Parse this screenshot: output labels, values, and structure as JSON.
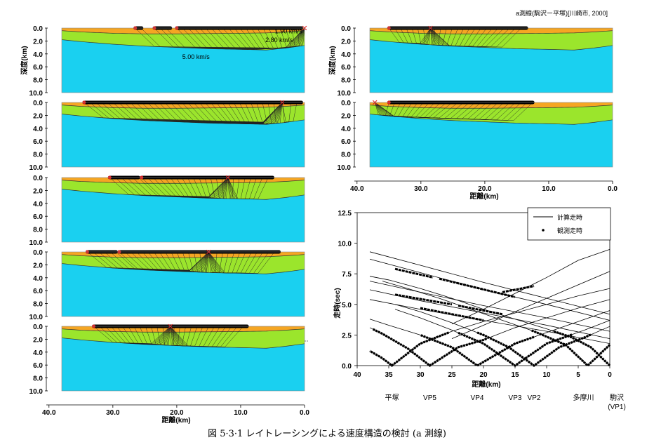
{
  "header": "a測線(駒沢ー平塚)[川崎市, 2000]",
  "caption": "図 5·3·1 レイトレーシングによる速度構造の検討 (a 測線)",
  "colors": {
    "layer1": "#f5a623",
    "layer2": "#9be52c",
    "layer3": "#1ad0f0",
    "sticks": "#000000",
    "source": "#e02020"
  },
  "model": {
    "velocity_labels": [
      "1.90 km/s",
      "2.80 km/s",
      "5.00 km/s"
    ],
    "depth_label": "深度(km)",
    "depth_ticks": [
      "0.0",
      "2.0",
      "4.0",
      "6.0",
      "8.0",
      "10.0"
    ],
    "distance_label": "距離(km)",
    "distance_ticks": [
      "40.0",
      "30.0",
      "20.0",
      "10.0",
      "0.0"
    ],
    "distance_range": [
      40,
      0
    ],
    "depth_range": [
      0,
      10
    ],
    "layer_boundaries": {
      "x": [
        38,
        35,
        30,
        25,
        20,
        15,
        10,
        6,
        3,
        0
      ],
      "base_layer1": [
        0.4,
        0.6,
        0.8,
        0.9,
        0.9,
        0.85,
        0.8,
        0.75,
        0.6,
        0.4
      ],
      "base_layer2": [
        1.8,
        2.1,
        2.5,
        2.8,
        3.0,
        3.2,
        3.3,
        3.4,
        3.1,
        2.7
      ]
    },
    "panels": [
      {
        "source_x": 0,
        "receivers": [
          [
            26.5,
            25.5
          ],
          [
            23.5,
            21
          ],
          [
            20,
            0.5
          ]
        ]
      },
      {
        "source_x": 3.5,
        "receivers": [
          [
            34.5,
            0.5
          ]
        ]
      },
      {
        "source_x": 12,
        "receivers": [
          [
            30.5,
            26
          ],
          [
            25.5,
            5
          ]
        ]
      },
      {
        "source_x": 15,
        "receivers": [
          [
            34,
            29.5
          ],
          [
            29,
            4
          ]
        ]
      },
      {
        "source_x": 21,
        "receivers": [
          [
            33,
            9
          ]
        ]
      },
      {
        "source_x": 28.5,
        "receivers": [
          [
            35,
            13.5
          ]
        ]
      },
      {
        "source_x": 37.2,
        "receivers": [
          [
            35,
            12.5
          ]
        ]
      }
    ]
  },
  "chart_data": {
    "type": "line",
    "xlabel": "距離(km)",
    "ylabel": "走時(sec)",
    "xlim": [
      40,
      0
    ],
    "ylim": [
      0,
      12.5
    ],
    "x_ticks": [
      "40",
      "35",
      "30",
      "25",
      "20",
      "15",
      "10",
      "5",
      "0"
    ],
    "y_ticks": [
      "0.0",
      "2.5",
      "5.0",
      "7.5",
      "10.0",
      "12.5"
    ],
    "legend": {
      "position": "top-right",
      "items": [
        "計算走時",
        "観測走時"
      ]
    },
    "shot_points": [
      {
        "label": "平塚",
        "x": 34.5
      },
      {
        "label": "VP5",
        "x": 28.5
      },
      {
        "label": "VP4",
        "x": 21
      },
      {
        "label": "VP3",
        "x": 15
      },
      {
        "label": "VP2",
        "x": 12
      },
      {
        "label": "多摩川",
        "x": 3.5
      },
      {
        "label": "駒沢",
        "x": 0
      },
      {
        "label": "(VP1)",
        "x": 0
      }
    ],
    "series": [
      {
        "source_x": 0,
        "x": [
          0,
          3,
          6,
          10,
          15,
          20,
          25,
          30,
          35,
          38
        ],
        "y": [
          0,
          1.5,
          2.3,
          3.0,
          3.8,
          4.6,
          5.5,
          6.3,
          7.0,
          7.3
        ]
      },
      {
        "source_x": 3.5,
        "x": [
          0,
          3.5,
          7,
          12,
          17,
          22,
          27,
          32,
          36
        ],
        "y": [
          1.7,
          0,
          1.7,
          2.8,
          3.7,
          4.6,
          5.5,
          6.3,
          6.9
        ]
      },
      {
        "source_x": 12,
        "x": [
          0,
          4,
          8,
          12,
          16,
          20,
          25,
          30,
          34
        ],
        "y": [
          3.2,
          2.3,
          1.5,
          0,
          1.5,
          2.5,
          3.5,
          4.4,
          5.0
        ]
      },
      {
        "source_x": 15,
        "x": [
          0,
          4,
          10,
          15,
          20,
          25,
          30,
          34
        ],
        "y": [
          3.7,
          2.9,
          1.8,
          0,
          1.8,
          2.9,
          3.9,
          4.6
        ]
      },
      {
        "source_x": 21,
        "x": [
          0,
          5,
          10,
          15,
          21,
          25,
          30,
          35,
          38
        ],
        "y": [
          4.5,
          3.6,
          2.7,
          1.8,
          0,
          1.5,
          2.5,
          3.3,
          3.8
        ]
      },
      {
        "source_x": 28.5,
        "x": [
          0,
          5,
          10,
          15,
          20,
          24,
          28.5,
          32,
          36,
          38
        ],
        "y": [
          5.4,
          4.7,
          3.9,
          3.1,
          2.1,
          1.5,
          0,
          1.4,
          2.6,
          3.1
        ]
      },
      {
        "source_x": 34.5,
        "x": [
          0,
          5,
          10,
          15,
          20,
          25,
          30,
          32,
          34.5,
          36,
          38
        ],
        "y": [
          6.3,
          5.7,
          5.0,
          4.3,
          3.6,
          2.8,
          1.8,
          1.0,
          0,
          0.6,
          1.2
        ]
      }
    ],
    "upper_lines": [
      {
        "x": [
          38,
          30,
          20,
          10,
          0
        ],
        "y": [
          9.3,
          8.2,
          6.8,
          5.5,
          4.2
        ]
      },
      {
        "x": [
          38,
          30,
          20,
          10,
          0
        ],
        "y": [
          8.7,
          7.6,
          6.2,
          5.0,
          3.7
        ]
      },
      {
        "x": [
          38,
          30,
          20,
          10,
          0
        ],
        "y": [
          6.9,
          6.0,
          4.9,
          3.9,
          2.8
        ]
      },
      {
        "x": [
          38,
          30,
          20,
          10,
          0
        ],
        "y": [
          6.2,
          5.3,
          4.3,
          3.3,
          2.2
        ]
      },
      {
        "x": [
          38,
          30,
          20,
          10,
          0
        ],
        "y": [
          5.4,
          4.6,
          3.7,
          2.8,
          1.8
        ]
      },
      {
        "x": [
          0,
          5,
          10,
          15,
          20,
          25
        ],
        "y": [
          9.5,
          8.6,
          7.2,
          5.9,
          4.6,
          3.4
        ]
      },
      {
        "x": [
          0,
          5,
          10,
          15,
          20,
          25
        ],
        "y": [
          7.7,
          6.6,
          5.5,
          4.4,
          3.3,
          2.2
        ]
      }
    ],
    "observed_segments": [
      {
        "x": [
          34,
          28
        ],
        "y": [
          7.9,
          7.2
        ]
      },
      {
        "x": [
          27,
          15
        ],
        "y": [
          7.1,
          5.6
        ]
      },
      {
        "x": [
          34,
          25
        ],
        "y": [
          5.8,
          5.0
        ]
      },
      {
        "x": [
          24,
          17
        ],
        "y": [
          4.9,
          4.2
        ]
      },
      {
        "x": [
          30,
          20
        ],
        "y": [
          4.7,
          3.7
        ]
      },
      {
        "x": [
          17,
          12
        ],
        "y": [
          6.0,
          6.5
        ]
      }
    ]
  }
}
